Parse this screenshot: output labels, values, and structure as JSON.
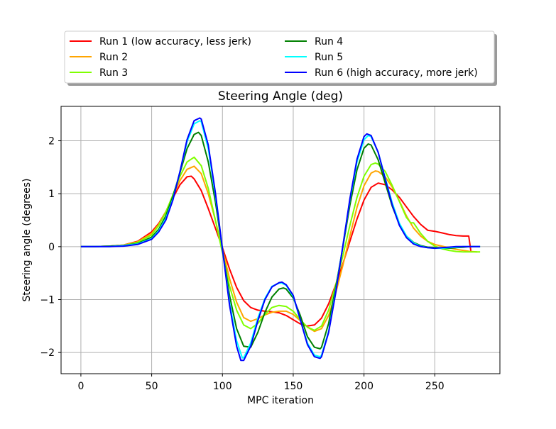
{
  "chart_data": {
    "type": "line",
    "title": "Steering Angle (deg)",
    "xlabel": "MPC iteration",
    "ylabel": "Steering angle (degrees)",
    "xlim": [
      -14,
      296
    ],
    "ylim": [
      -2.4,
      2.65
    ],
    "xticks": [
      0,
      50,
      100,
      150,
      200,
      250
    ],
    "yticks": [
      -2,
      -1,
      0,
      1,
      2
    ],
    "xtick_labels": [
      "0",
      "50",
      "100",
      "150",
      "200",
      "250"
    ],
    "ytick_labels": [
      "−2",
      "−1",
      "0",
      "1",
      "2"
    ],
    "grid": true,
    "legend_placement": "above plot, two columns",
    "series": [
      {
        "name": "Run 1 (low accuracy, less jerk)",
        "color": "#ff0000",
        "x": [
          0,
          10,
          20,
          30,
          40,
          50,
          55,
          60,
          65,
          70,
          75,
          78,
          80,
          85,
          90,
          95,
          100,
          105,
          110,
          115,
          120,
          125,
          130,
          135,
          140,
          145,
          150,
          155,
          160,
          165,
          170,
          175,
          180,
          185,
          190,
          195,
          200,
          205,
          210,
          215,
          220,
          225,
          230,
          235,
          240,
          245,
          250,
          255,
          260,
          265,
          270,
          274,
          275.5
        ],
        "y": [
          0,
          0,
          0.01,
          0.03,
          0.1,
          0.28,
          0.44,
          0.66,
          0.92,
          1.17,
          1.32,
          1.33,
          1.28,
          1.06,
          0.72,
          0.35,
          -0.02,
          -0.42,
          -0.77,
          -1.02,
          -1.15,
          -1.2,
          -1.22,
          -1.23,
          -1.25,
          -1.3,
          -1.38,
          -1.46,
          -1.5,
          -1.48,
          -1.35,
          -1.08,
          -0.72,
          -0.33,
          0.1,
          0.52,
          0.88,
          1.12,
          1.2,
          1.17,
          1.07,
          0.93,
          0.75,
          0.57,
          0.42,
          0.31,
          0.29,
          0.26,
          0.23,
          0.21,
          0.2,
          0.2,
          -0.08
        ]
      },
      {
        "name": "Run 2",
        "color": "#ffa500",
        "x": [
          0,
          10,
          20,
          30,
          40,
          50,
          55,
          60,
          65,
          70,
          75,
          80,
          85,
          90,
          95,
          100,
          105,
          110,
          115,
          120,
          125,
          130,
          135,
          140,
          145,
          150,
          155,
          160,
          165,
          170,
          175,
          180,
          185,
          190,
          195,
          200,
          205,
          208,
          210,
          215,
          220,
          225,
          230,
          235,
          240,
          245,
          250,
          255,
          260,
          265,
          270,
          275,
          280
        ],
        "y": [
          0,
          0,
          0.01,
          0.03,
          0.09,
          0.25,
          0.42,
          0.66,
          0.96,
          1.25,
          1.46,
          1.52,
          1.38,
          1.0,
          0.5,
          -0.05,
          -0.6,
          -1.05,
          -1.34,
          -1.41,
          -1.36,
          -1.29,
          -1.24,
          -1.22,
          -1.22,
          -1.28,
          -1.4,
          -1.52,
          -1.6,
          -1.55,
          -1.3,
          -0.88,
          -0.36,
          0.2,
          0.74,
          1.15,
          1.39,
          1.43,
          1.42,
          1.32,
          1.12,
          0.86,
          0.58,
          0.35,
          0.2,
          0.1,
          0.04,
          0.01,
          -0.02,
          -0.05,
          -0.07,
          -0.09,
          -0.1
        ]
      },
      {
        "name": "Run 3",
        "color": "#7fff00",
        "x": [
          0,
          10,
          20,
          30,
          40,
          50,
          55,
          60,
          65,
          70,
          75,
          80,
          85,
          90,
          95,
          100,
          105,
          110,
          115,
          120,
          125,
          130,
          135,
          140,
          145,
          150,
          155,
          160,
          165,
          170,
          175,
          180,
          185,
          190,
          195,
          200,
          205,
          208,
          210,
          215,
          220,
          225,
          230,
          233,
          235,
          240,
          245,
          250,
          255,
          260,
          265,
          270,
          275,
          282
        ],
        "y": [
          0,
          0,
          0.01,
          0.02,
          0.08,
          0.22,
          0.4,
          0.65,
          0.98,
          1.33,
          1.6,
          1.69,
          1.53,
          1.1,
          0.5,
          -0.12,
          -0.74,
          -1.2,
          -1.48,
          -1.55,
          -1.45,
          -1.28,
          -1.15,
          -1.11,
          -1.13,
          -1.22,
          -1.38,
          -1.52,
          -1.58,
          -1.5,
          -1.2,
          -0.73,
          -0.18,
          0.4,
          0.93,
          1.33,
          1.55,
          1.58,
          1.56,
          1.42,
          1.15,
          0.85,
          0.55,
          0.45,
          0.45,
          0.25,
          0.1,
          0.01,
          -0.04,
          -0.07,
          -0.09,
          -0.1,
          -0.1,
          -0.1
        ]
      },
      {
        "name": "Run 4",
        "color": "#008000",
        "x": [
          0,
          10,
          20,
          30,
          40,
          50,
          55,
          60,
          65,
          70,
          75,
          80,
          83,
          85,
          90,
          95,
          100,
          105,
          110,
          115,
          120,
          125,
          130,
          135,
          140,
          143,
          145,
          150,
          155,
          160,
          165,
          169,
          170,
          175,
          180,
          185,
          190,
          195,
          200,
          203,
          205,
          210,
          215,
          220,
          225,
          230,
          235,
          240,
          245,
          250,
          255,
          260,
          265,
          270,
          275,
          282
        ],
        "y": [
          0,
          0,
          0.01,
          0.02,
          0.06,
          0.18,
          0.33,
          0.58,
          0.95,
          1.4,
          1.85,
          2.12,
          2.16,
          2.1,
          1.6,
          0.85,
          -0.05,
          -0.92,
          -1.55,
          -1.88,
          -1.9,
          -1.62,
          -1.24,
          -0.95,
          -0.8,
          -0.78,
          -0.8,
          -0.97,
          -1.3,
          -1.7,
          -1.9,
          -1.93,
          -1.9,
          -1.45,
          -0.78,
          -0.02,
          0.78,
          1.45,
          1.86,
          1.94,
          1.92,
          1.64,
          1.2,
          0.76,
          0.42,
          0.2,
          0.08,
          0.02,
          -0.01,
          -0.02,
          -0.03,
          -0.03,
          -0.02,
          -0.01,
          0,
          0
        ]
      },
      {
        "name": "Run 5",
        "color": "#00ffff",
        "x": [
          0,
          10,
          20,
          30,
          40,
          50,
          55,
          60,
          65,
          70,
          75,
          80,
          84,
          85,
          90,
          95,
          100,
          105,
          110,
          114,
          115,
          120,
          125,
          130,
          135,
          140,
          142,
          145,
          150,
          155,
          160,
          165,
          169,
          170,
          175,
          180,
          185,
          190,
          195,
          200,
          203,
          205,
          210,
          215,
          220,
          225,
          230,
          235,
          240,
          245,
          250,
          255,
          260,
          265,
          270,
          275,
          282
        ],
        "y": [
          0,
          0,
          0,
          0.02,
          0.05,
          0.15,
          0.3,
          0.53,
          0.9,
          1.42,
          1.98,
          2.32,
          2.38,
          2.36,
          1.85,
          0.98,
          -0.05,
          -1.05,
          -1.78,
          -2.1,
          -2.1,
          -1.82,
          -1.35,
          -0.98,
          -0.75,
          -0.69,
          -0.69,
          -0.73,
          -0.94,
          -1.38,
          -1.82,
          -2.05,
          -2.08,
          -2.05,
          -1.6,
          -0.85,
          0,
          0.88,
          1.6,
          2.02,
          2.1,
          2.08,
          1.78,
          1.3,
          0.82,
          0.44,
          0.2,
          0.07,
          0.01,
          -0.02,
          -0.03,
          -0.03,
          -0.02,
          -0.01,
          0,
          0,
          0
        ]
      },
      {
        "name": "Run 6 (high accuracy, more jerk)",
        "color": "#0000ff",
        "x": [
          0,
          10,
          20,
          30,
          40,
          50,
          55,
          60,
          65,
          70,
          75,
          80,
          84,
          85,
          90,
          95,
          100,
          105,
          110,
          113,
          115,
          120,
          125,
          130,
          135,
          140,
          142,
          145,
          150,
          155,
          160,
          165,
          169,
          170,
          175,
          180,
          185,
          190,
          195,
          200,
          202,
          205,
          210,
          215,
          220,
          225,
          230,
          235,
          240,
          245,
          250,
          255,
          260,
          265,
          270,
          275,
          282
        ],
        "y": [
          0,
          0,
          0,
          0.01,
          0.04,
          0.14,
          0.28,
          0.5,
          0.88,
          1.42,
          2.02,
          2.38,
          2.43,
          2.41,
          1.92,
          1.02,
          -0.05,
          -1.1,
          -1.88,
          -2.15,
          -2.15,
          -1.88,
          -1.4,
          -1.0,
          -0.76,
          -0.68,
          -0.67,
          -0.72,
          -0.92,
          -1.38,
          -1.85,
          -2.08,
          -2.11,
          -2.08,
          -1.62,
          -0.88,
          0,
          0.9,
          1.65,
          2.08,
          2.13,
          2.1,
          1.78,
          1.28,
          0.78,
          0.4,
          0.17,
          0.05,
          0,
          -0.02,
          -0.03,
          -0.02,
          -0.01,
          0,
          0,
          0,
          0
        ]
      }
    ]
  }
}
